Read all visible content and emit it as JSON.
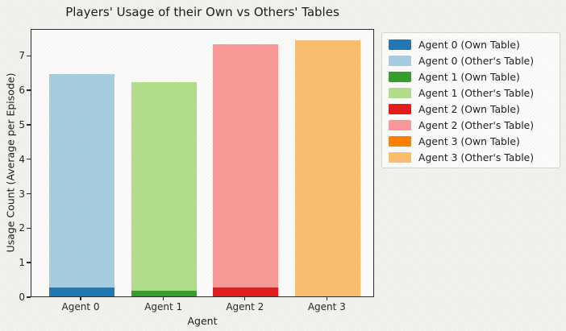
{
  "figure": {
    "background": "#f2f2f0",
    "plot_background": "#fcfcfb",
    "spine_color": "#2b2b2b"
  },
  "chart_data": {
    "type": "bar",
    "stacked": true,
    "title": "Players' Usage of their Own vs Others' Tables",
    "xlabel": "Agent",
    "ylabel": "Usage Count (Average per Episode)",
    "categories": [
      "Agent 0",
      "Agent 1",
      "Agent 2",
      "Agent 3"
    ],
    "yticks": [
      0,
      1,
      2,
      3,
      4,
      5,
      6,
      7
    ],
    "ylim": [
      0,
      7.78
    ],
    "grid": false,
    "legend_position": "outside-upper-right",
    "agents": [
      {
        "category": "Agent 0",
        "own": {
          "legend": "Agent 0 (Own Table)",
          "value": 0.25,
          "color": "#1f78b4"
        },
        "other": {
          "legend": "Agent 0 (Other's Table)",
          "value": 6.2,
          "color": "#a6cee3"
        }
      },
      {
        "category": "Agent 1",
        "own": {
          "legend": "Agent 1 (Own Table)",
          "value": 0.16,
          "color": "#33a02c"
        },
        "other": {
          "legend": "Agent 1 (Other's Table)",
          "value": 6.06,
          "color": "#b2df8a"
        }
      },
      {
        "category": "Agent 2",
        "own": {
          "legend": "Agent 2 (Own Table)",
          "value": 0.26,
          "color": "#e31a1c"
        },
        "other": {
          "legend": "Agent 2 (Other's Table)",
          "value": 7.06,
          "color": "#fb9a99"
        }
      },
      {
        "category": "Agent 3",
        "own": {
          "legend": "Agent 3 (Own Table)",
          "value": 0.0,
          "color": "#ff7f00"
        },
        "other": {
          "legend": "Agent 3 (Other's Table)",
          "value": 7.44,
          "color": "#fdbf6f"
        }
      }
    ]
  }
}
